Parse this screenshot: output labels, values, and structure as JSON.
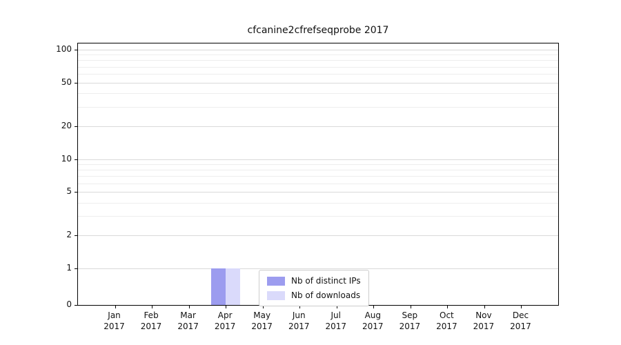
{
  "chart_data": {
    "type": "bar",
    "title": "cfcanine2cfrefseqprobe 2017",
    "categories": [
      "Jan",
      "Feb",
      "Mar",
      "Apr",
      "May",
      "Jun",
      "Jul",
      "Aug",
      "Sep",
      "Oct",
      "Nov",
      "Dec"
    ],
    "x_year_label": "2017",
    "series": [
      {
        "name": "Nb of distinct IPs",
        "color": "#9c9cef",
        "values": [
          0,
          0,
          0,
          1,
          0,
          0,
          0,
          0,
          0,
          0,
          0,
          0
        ]
      },
      {
        "name": "Nb of downloads",
        "color": "#dadafb",
        "values": [
          0,
          0,
          0,
          1,
          0,
          0,
          0,
          0,
          0,
          0,
          0,
          0
        ]
      }
    ],
    "yscale": "symlog",
    "yticks": [
      0,
      1,
      2,
      5,
      10,
      20,
      50,
      100
    ],
    "minor_yticks": [
      3,
      4,
      6,
      7,
      8,
      9,
      30,
      40,
      60,
      70,
      80,
      90
    ],
    "ylim": [
      0,
      114
    ],
    "xlabel": "",
    "ylabel": "",
    "grid": "horizontal",
    "legend_position": "lower-center",
    "grid_color": "#d9d9d9",
    "minor_grid_color": "#ededed",
    "axis_color": "#000000"
  }
}
